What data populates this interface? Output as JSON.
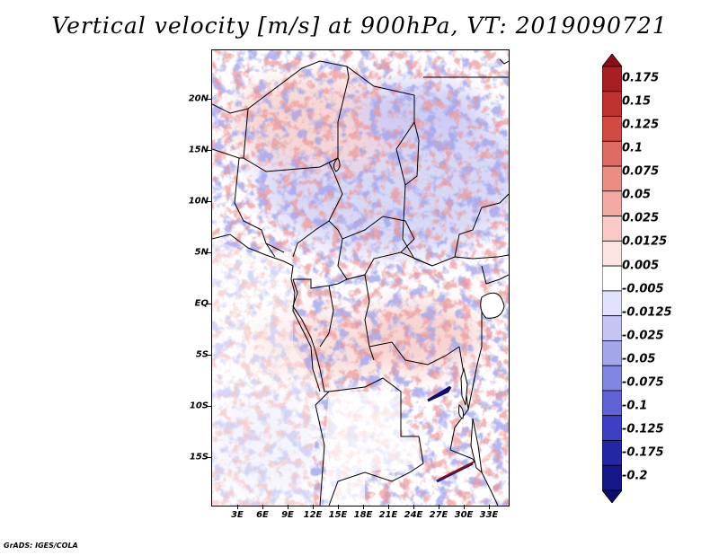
{
  "title": "Vertical velocity [m/s] at 900hPa, VT: 2019090721",
  "footer": "GrADS: IGES/COLA",
  "map": {
    "lat_labels": [
      "20N",
      "15N",
      "10N",
      "5N",
      "EQ",
      "5S",
      "10S",
      "15S"
    ],
    "lon_labels": [
      "3E",
      "6E",
      "9E",
      "12E",
      "15E",
      "18E",
      "21E",
      "24E",
      "27E",
      "30E",
      "33E"
    ]
  },
  "colorbar": {
    "labels": [
      "0.175",
      "0.15",
      "0.125",
      "0.1",
      "0.075",
      "0.05",
      "0.025",
      "0.0125",
      "0.005",
      "-0.005",
      "-0.0125",
      "-0.025",
      "-0.05",
      "-0.075",
      "-0.1",
      "-0.125",
      "-0.175",
      "-0.2"
    ],
    "colors": [
      "#8b0e15",
      "#a81e22",
      "#c0322f",
      "#d24a44",
      "#e06b62",
      "#ec8c83",
      "#f4aaa3",
      "#f9cac5",
      "#fde4e1",
      "#ffffff",
      "#e1e2fb",
      "#c4c5f4",
      "#a4a6ec",
      "#8286e2",
      "#5e62d6",
      "#3d40c4",
      "#2426a8",
      "#14168a",
      "#0b0c6e"
    ]
  }
}
